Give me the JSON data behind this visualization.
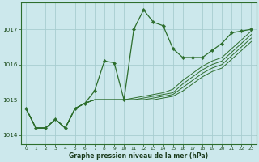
{
  "xlabel": "Graphe pression niveau de la mer (hPa)",
  "background_color": "#cce8ec",
  "plot_bg_color": "#cce8ec",
  "grid_color": "#a8cdd0",
  "line_color": "#2d6e2d",
  "marker_color": "#2d6e2d",
  "ylim": [
    1013.75,
    1017.75
  ],
  "xlim": [
    -0.5,
    23.5
  ],
  "yticks": [
    1014,
    1015,
    1016,
    1017
  ],
  "xtick_labels": [
    "0",
    "1",
    "2",
    "3",
    "4",
    "5",
    "6",
    "7",
    "8",
    "9",
    "10",
    "11",
    "12",
    "13",
    "14",
    "15",
    "16",
    "17",
    "18",
    "19",
    "20",
    "21",
    "22",
    "23"
  ],
  "main_series": [
    1014.75,
    1014.2,
    1014.2,
    1014.45,
    1014.2,
    1014.75,
    1014.9,
    1015.25,
    1016.1,
    1016.05,
    1015.0,
    1017.0,
    1017.55,
    1017.2,
    1017.1,
    1016.45,
    1016.2,
    1016.2,
    1016.2,
    1016.4,
    1016.6,
    1016.9,
    1016.95,
    1017.0
  ],
  "fan_series": [
    [
      1014.75,
      1014.2,
      1014.2,
      1014.45,
      1014.2,
      1014.75,
      1014.9,
      1015.0,
      1015.0,
      1015.0,
      1015.0,
      1015.05,
      1015.1,
      1015.15,
      1015.2,
      1015.3,
      1015.55,
      1015.75,
      1015.95,
      1016.1,
      1016.2,
      1016.45,
      1016.7,
      1016.95
    ],
    [
      1014.75,
      1014.2,
      1014.2,
      1014.45,
      1014.2,
      1014.75,
      1014.9,
      1015.0,
      1015.0,
      1015.0,
      1015.0,
      1015.0,
      1015.05,
      1015.1,
      1015.15,
      1015.2,
      1015.45,
      1015.65,
      1015.85,
      1016.0,
      1016.1,
      1016.35,
      1016.6,
      1016.85
    ],
    [
      1014.75,
      1014.2,
      1014.2,
      1014.45,
      1014.2,
      1014.75,
      1014.9,
      1015.0,
      1015.0,
      1015.0,
      1015.0,
      1015.0,
      1015.0,
      1015.05,
      1015.1,
      1015.15,
      1015.35,
      1015.55,
      1015.75,
      1015.9,
      1016.0,
      1016.25,
      1016.5,
      1016.75
    ],
    [
      1014.75,
      1014.2,
      1014.2,
      1014.45,
      1014.2,
      1014.75,
      1014.9,
      1015.0,
      1015.0,
      1015.0,
      1015.0,
      1015.0,
      1015.0,
      1015.0,
      1015.05,
      1015.1,
      1015.25,
      1015.45,
      1015.65,
      1015.8,
      1015.9,
      1016.15,
      1016.4,
      1016.65
    ]
  ]
}
